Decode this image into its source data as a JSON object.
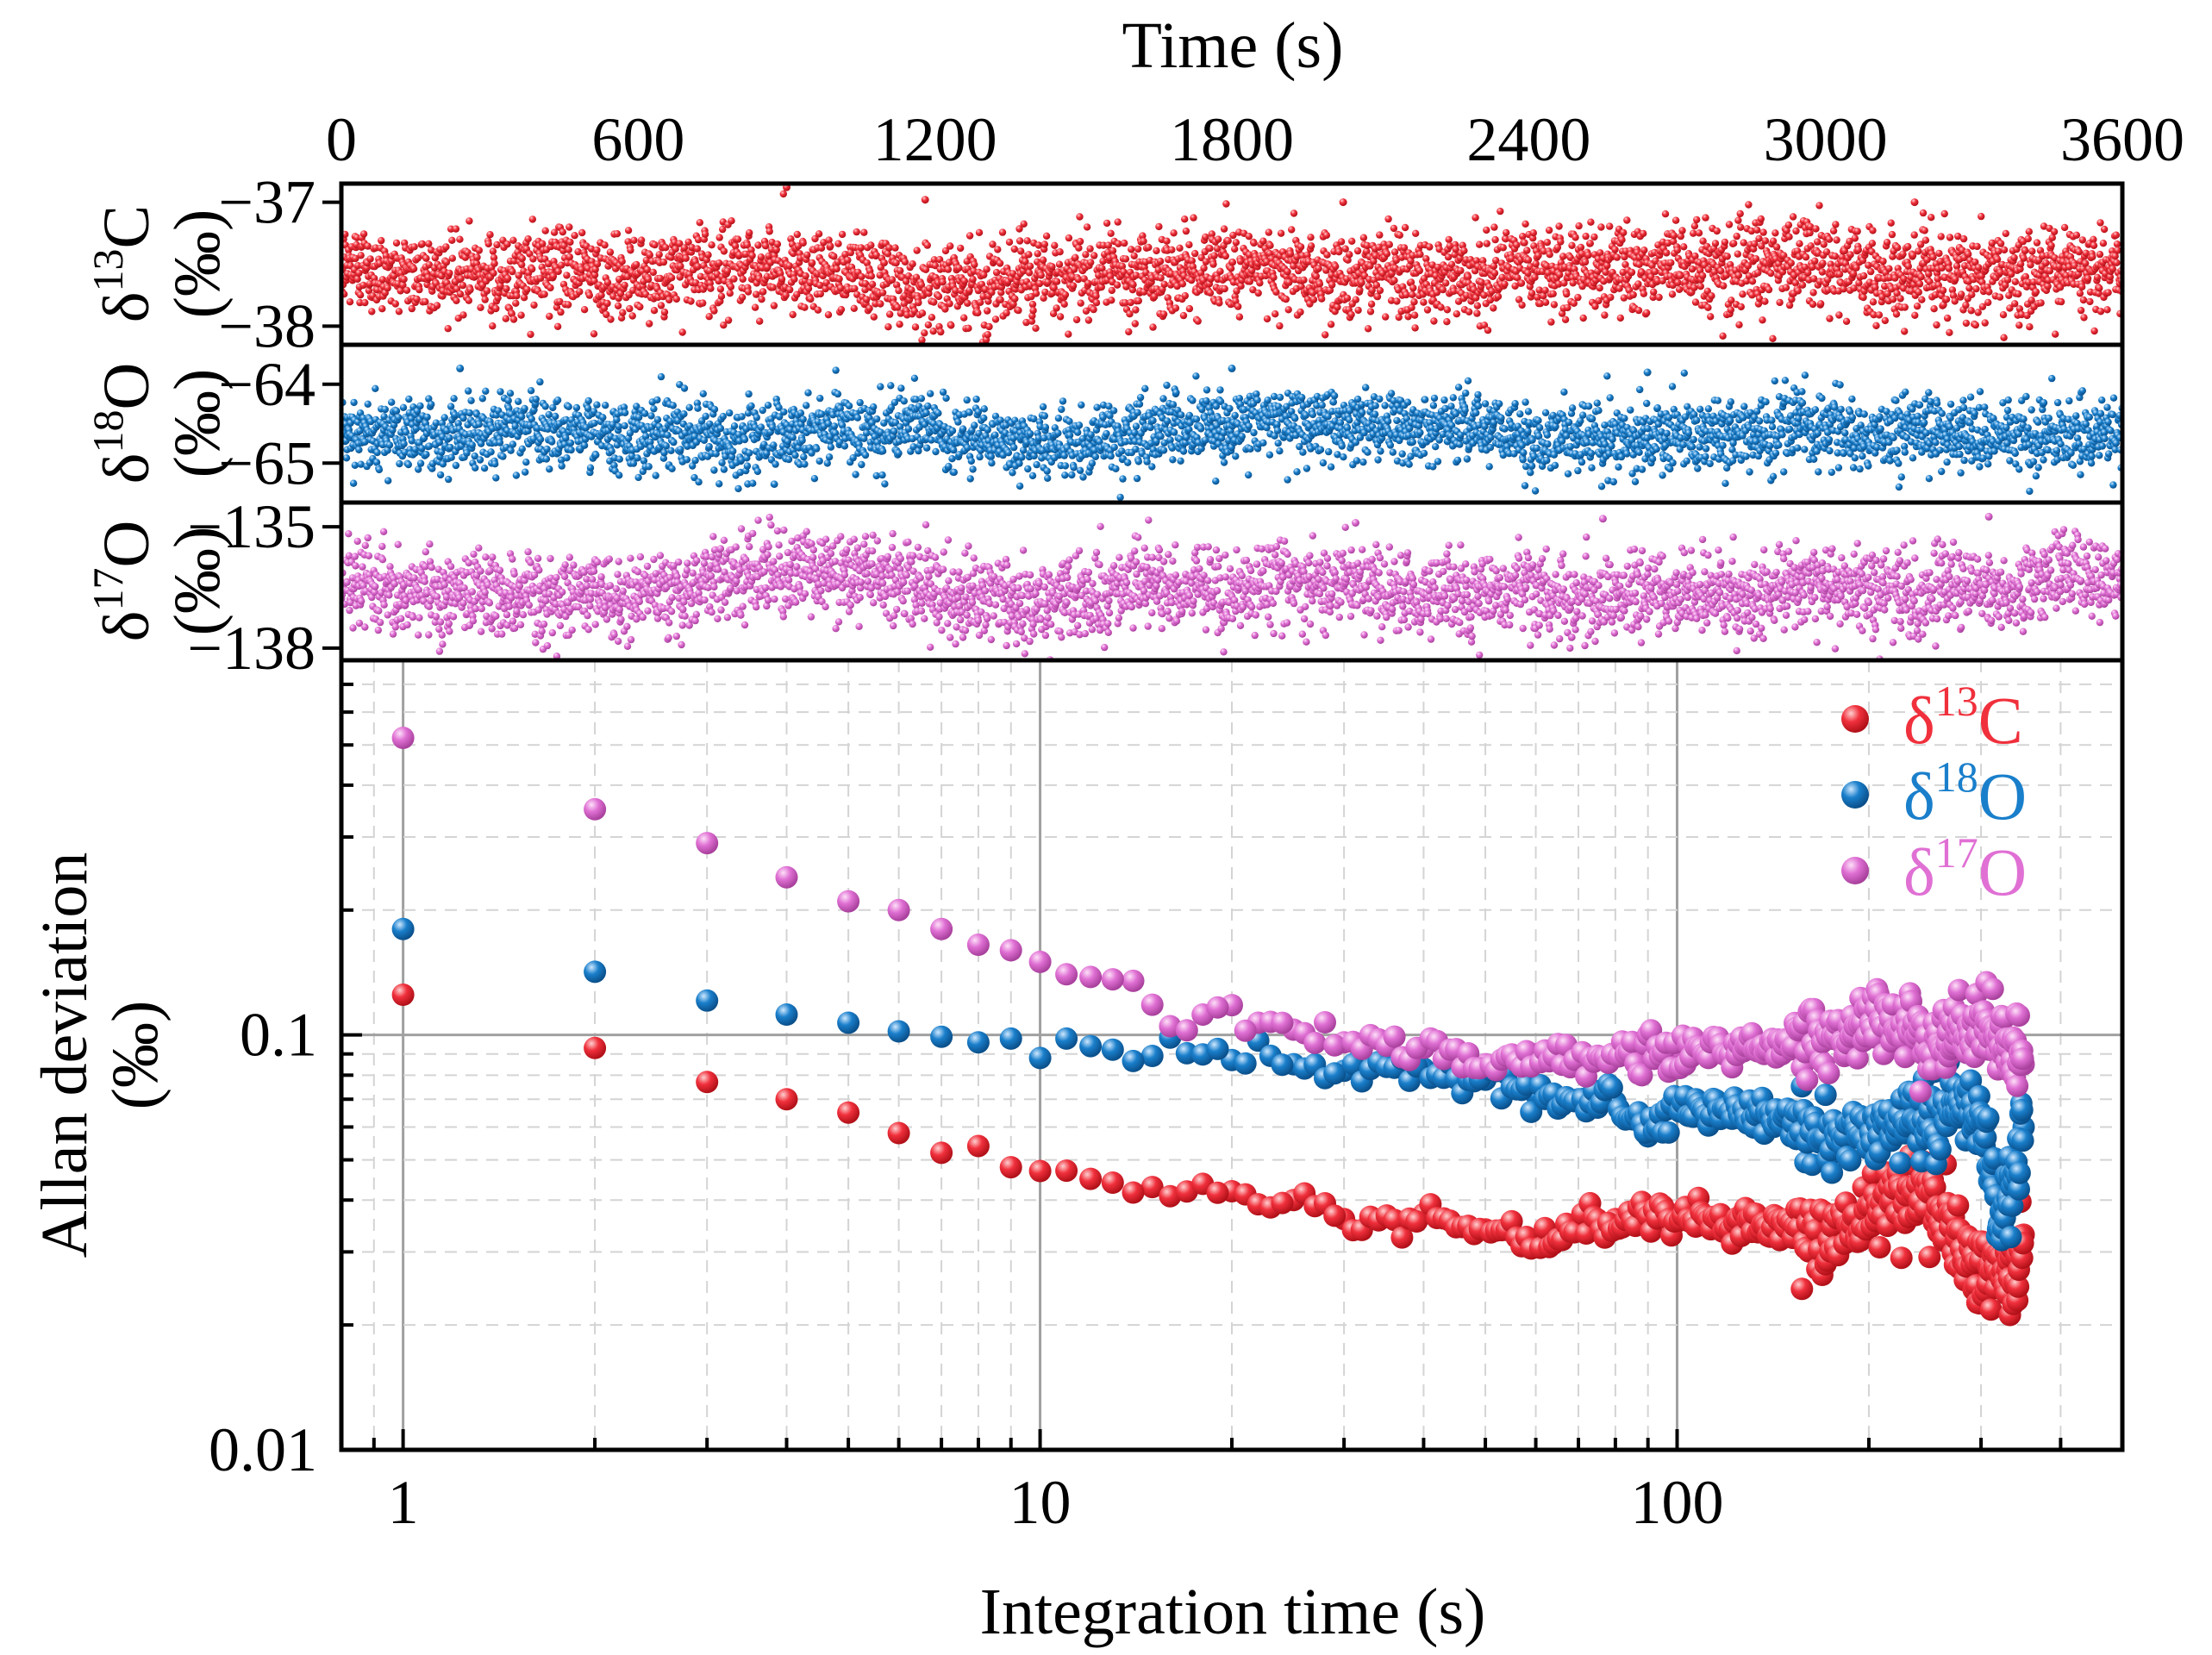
{
  "chart_data": [
    {
      "type": "scatter",
      "panel": "time-series-d13C",
      "title": "Time (s)",
      "xlabel": "Time (s)",
      "x_range": [
        0,
        3600
      ],
      "x_ticks": [
        "0",
        "600",
        "1200",
        "1800",
        "2400",
        "3000",
        "3600"
      ],
      "ylabel_parts": [
        "δ",
        "13",
        "C"
      ],
      "ylabel_unit": "(‰)",
      "y_range": [
        -38.15,
        -36.85
      ],
      "y_ticks": [
        "−37",
        "−38"
      ],
      "y_tick_values": [
        -37,
        -38
      ],
      "series": [
        {
          "name": "δ13C",
          "color": "#f0303c",
          "n_points": 3600,
          "mean": -37.55,
          "std": 0.17,
          "outliers": [
            [
              900,
              -36.88
            ],
            [
              1180,
              -36.98
            ],
            [
              2025,
              -37.0
            ],
            [
              3180,
              -37.0
            ]
          ]
        }
      ]
    },
    {
      "type": "scatter",
      "panel": "time-series-d18O",
      "xlabel": "Time (s)",
      "x_range": [
        0,
        3600
      ],
      "ylabel_parts": [
        "δ",
        "18",
        "O"
      ],
      "ylabel_unit": "(‰)",
      "y_range": [
        -65.5,
        -63.5
      ],
      "y_ticks": [
        "−64",
        "−65"
      ],
      "y_tick_values": [
        -64,
        -65
      ],
      "series": [
        {
          "name": "δ18O",
          "color": "#1a7fcb",
          "n_points": 3600,
          "mean": -64.6,
          "std": 0.22,
          "outliers": [
            [
              240,
              -63.8
            ],
            [
              1800,
              -63.8
            ],
            [
              2640,
              -63.85
            ]
          ]
        }
      ]
    },
    {
      "type": "scatter",
      "panel": "time-series-d17O",
      "xlabel": "Time (s)",
      "x_range": [
        0,
        3600
      ],
      "ylabel_parts": [
        "δ",
        "17",
        "O"
      ],
      "ylabel_unit": "(‰)",
      "y_range": [
        -138.3,
        -134.4
      ],
      "y_ticks": [
        "−135",
        "−138"
      ],
      "y_tick_values": [
        -135,
        -138
      ],
      "series": [
        {
          "name": "δ17O",
          "color": "#e070d4",
          "n_points": 3600,
          "mean": -136.4,
          "std": 0.5,
          "outliers": [
            [
              2050,
              -134.9
            ],
            [
              2550,
              -134.8
            ],
            [
              3330,
              -134.75
            ]
          ]
        }
      ]
    },
    {
      "type": "scatter",
      "panel": "allan-deviation",
      "xlabel": "Integration time (s)",
      "ylabel": "Allan deviation",
      "ylabel_unit": "(‰)",
      "x_scale": "log",
      "y_scale": "log",
      "x_range": [
        0.8,
        500
      ],
      "y_range": [
        0.01,
        0.8
      ],
      "x_ticks": [
        "1",
        "10",
        "100"
      ],
      "x_tick_values": [
        1,
        10,
        100
      ],
      "y_ticks": [
        "0.1",
        "0.01"
      ],
      "y_tick_values": [
        0.1,
        0.01
      ],
      "grid": true,
      "legend_position": "top-right",
      "series": [
        {
          "name": "δ13C",
          "name_parts": [
            "δ",
            "13",
            "C"
          ],
          "color": "#f0303c",
          "x": [
            1,
            2,
            3,
            4,
            5,
            6,
            7,
            8,
            9,
            10,
            12,
            15,
            20,
            25,
            30,
            40,
            50,
            60,
            70,
            80,
            100,
            120,
            150,
            180,
            200,
            220,
            250,
            280,
            300,
            320,
            340,
            350
          ],
          "y": [
            0.125,
            0.093,
            0.077,
            0.07,
            0.065,
            0.058,
            0.052,
            0.054,
            0.048,
            0.047,
            0.045,
            0.043,
            0.042,
            0.04,
            0.036,
            0.037,
            0.034,
            0.032,
            0.034,
            0.036,
            0.036,
            0.035,
            0.034,
            0.033,
            0.038,
            0.04,
            0.042,
            0.03,
            0.028,
            0.026,
            0.027,
            0.033
          ]
        },
        {
          "name": "δ18O",
          "name_parts": [
            "δ",
            "18",
            "O"
          ],
          "color": "#1a7fcb",
          "x": [
            1,
            2,
            3,
            4,
            5,
            6,
            7,
            8,
            9,
            10,
            11,
            12,
            15,
            20,
            25,
            30,
            40,
            50,
            60,
            70,
            80,
            90,
            100,
            120,
            150,
            180,
            200,
            230,
            260,
            280,
            300,
            320,
            340,
            350
          ],
          "y": [
            0.18,
            0.142,
            0.121,
            0.112,
            0.107,
            0.102,
            0.099,
            0.096,
            0.098,
            0.088,
            0.098,
            0.094,
            0.089,
            0.087,
            0.085,
            0.082,
            0.083,
            0.078,
            0.072,
            0.07,
            0.069,
            0.057,
            0.068,
            0.066,
            0.062,
            0.055,
            0.058,
            0.064,
            0.062,
            0.07,
            0.064,
            0.035,
            0.045,
            0.06
          ]
        },
        {
          "name": "δ17O",
          "name_parts": [
            "δ",
            "17",
            "O"
          ],
          "color": "#e070d4",
          "x": [
            1,
            2,
            3,
            4,
            5,
            6,
            7,
            8,
            9,
            10,
            11,
            12,
            14,
            16,
            18,
            20,
            22,
            25,
            30,
            40,
            50,
            60,
            70,
            80,
            100,
            120,
            150,
            180,
            200,
            250,
            300,
            350
          ],
          "y": [
            0.52,
            0.35,
            0.29,
            0.24,
            0.21,
            0.2,
            0.18,
            0.165,
            0.16,
            0.15,
            0.14,
            0.138,
            0.135,
            0.105,
            0.112,
            0.118,
            0.107,
            0.103,
            0.096,
            0.093,
            0.085,
            0.09,
            0.087,
            0.09,
            0.092,
            0.093,
            0.094,
            0.098,
            0.108,
            0.097,
            0.103,
            0.085
          ]
        }
      ]
    }
  ]
}
